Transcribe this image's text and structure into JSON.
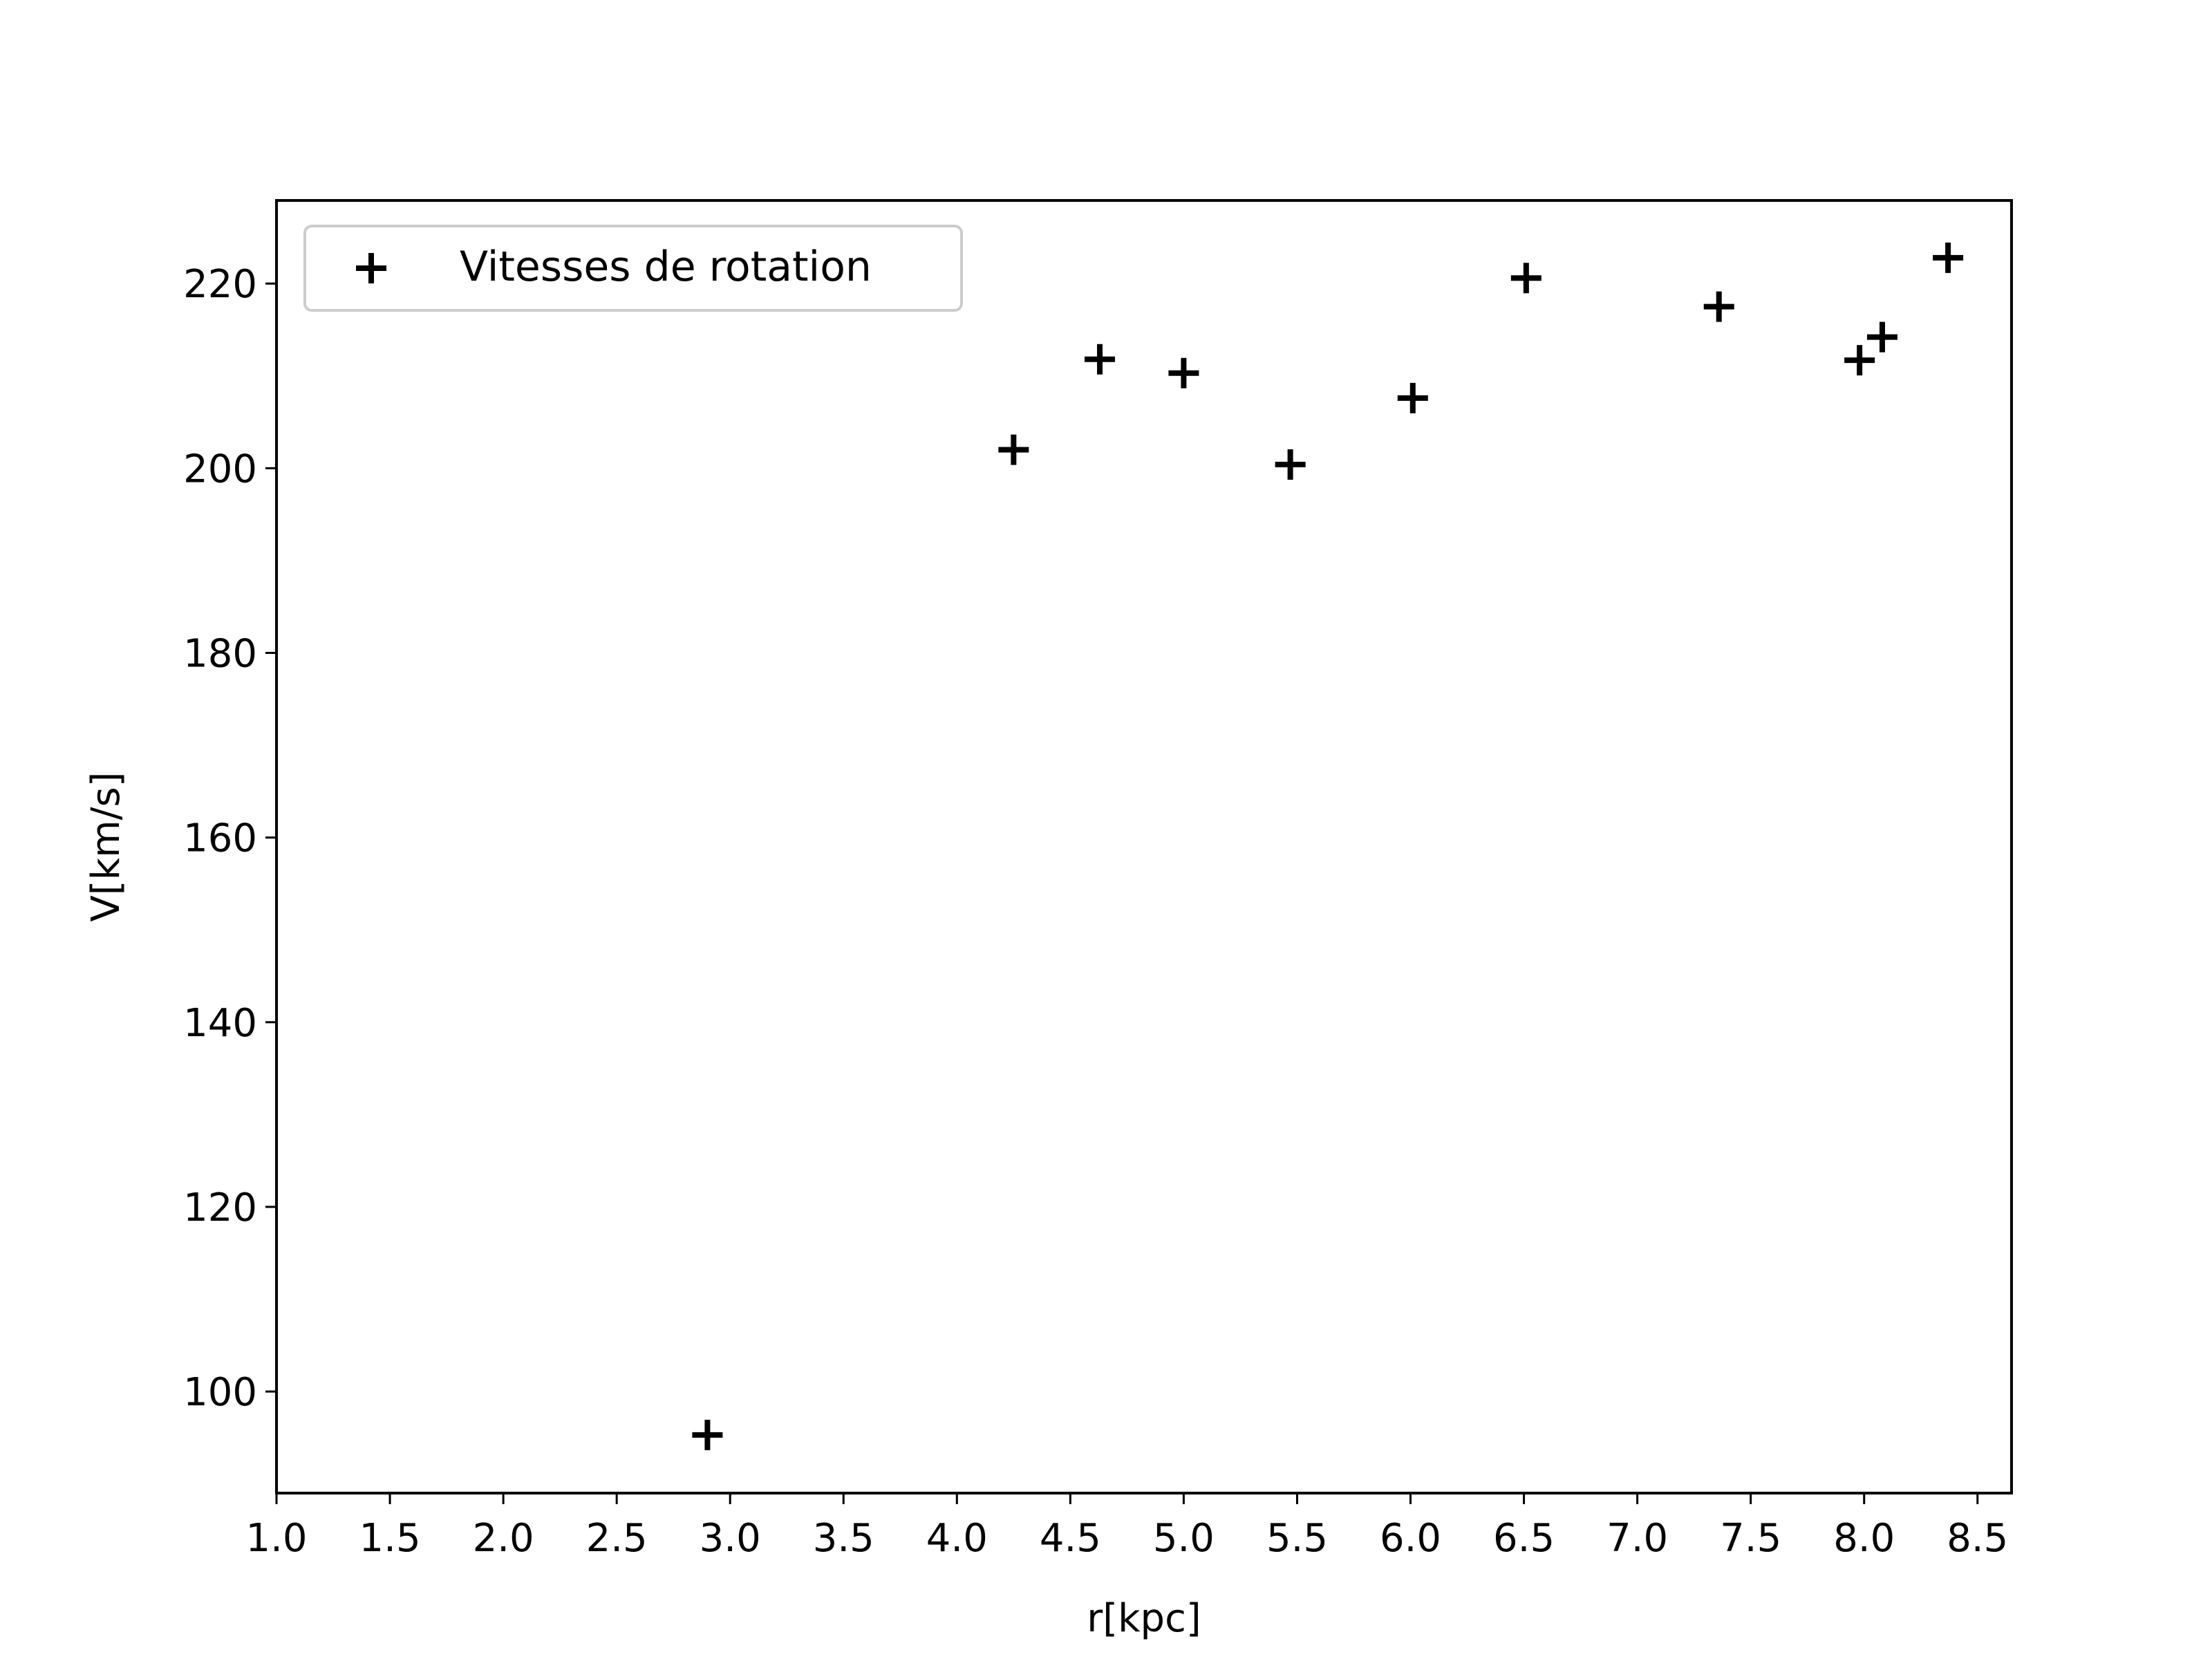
{
  "chart_data": {
    "type": "scatter",
    "title": "",
    "xlabel": "r[kpc]",
    "ylabel": "V[km/s]",
    "xlim": [
      1.0,
      8.65
    ],
    "ylim": [
      89,
      229
    ],
    "xticks": [
      "1.0",
      "1.5",
      "2.0",
      "2.5",
      "3.0",
      "3.5",
      "4.0",
      "4.5",
      "5.0",
      "5.5",
      "6.0",
      "6.5",
      "7.0",
      "7.5",
      "8.0",
      "8.5"
    ],
    "yticks": [
      "100",
      "120",
      "140",
      "160",
      "180",
      "200",
      "220"
    ],
    "grid": false,
    "legend_position": "top-left",
    "marker": "plus",
    "series": [
      {
        "name": "Vitesses de rotation",
        "color": "#000000",
        "points": [
          {
            "x": 2.9,
            "y": 95.3
          },
          {
            "x": 4.25,
            "y": 202.0
          },
          {
            "x": 4.63,
            "y": 211.8
          },
          {
            "x": 5.0,
            "y": 210.3
          },
          {
            "x": 5.47,
            "y": 200.4
          },
          {
            "x": 6.01,
            "y": 207.6
          },
          {
            "x": 6.51,
            "y": 220.6
          },
          {
            "x": 7.36,
            "y": 217.5
          },
          {
            "x": 7.98,
            "y": 211.7
          },
          {
            "x": 8.08,
            "y": 214.2
          },
          {
            "x": 8.37,
            "y": 222.8
          }
        ]
      }
    ]
  }
}
